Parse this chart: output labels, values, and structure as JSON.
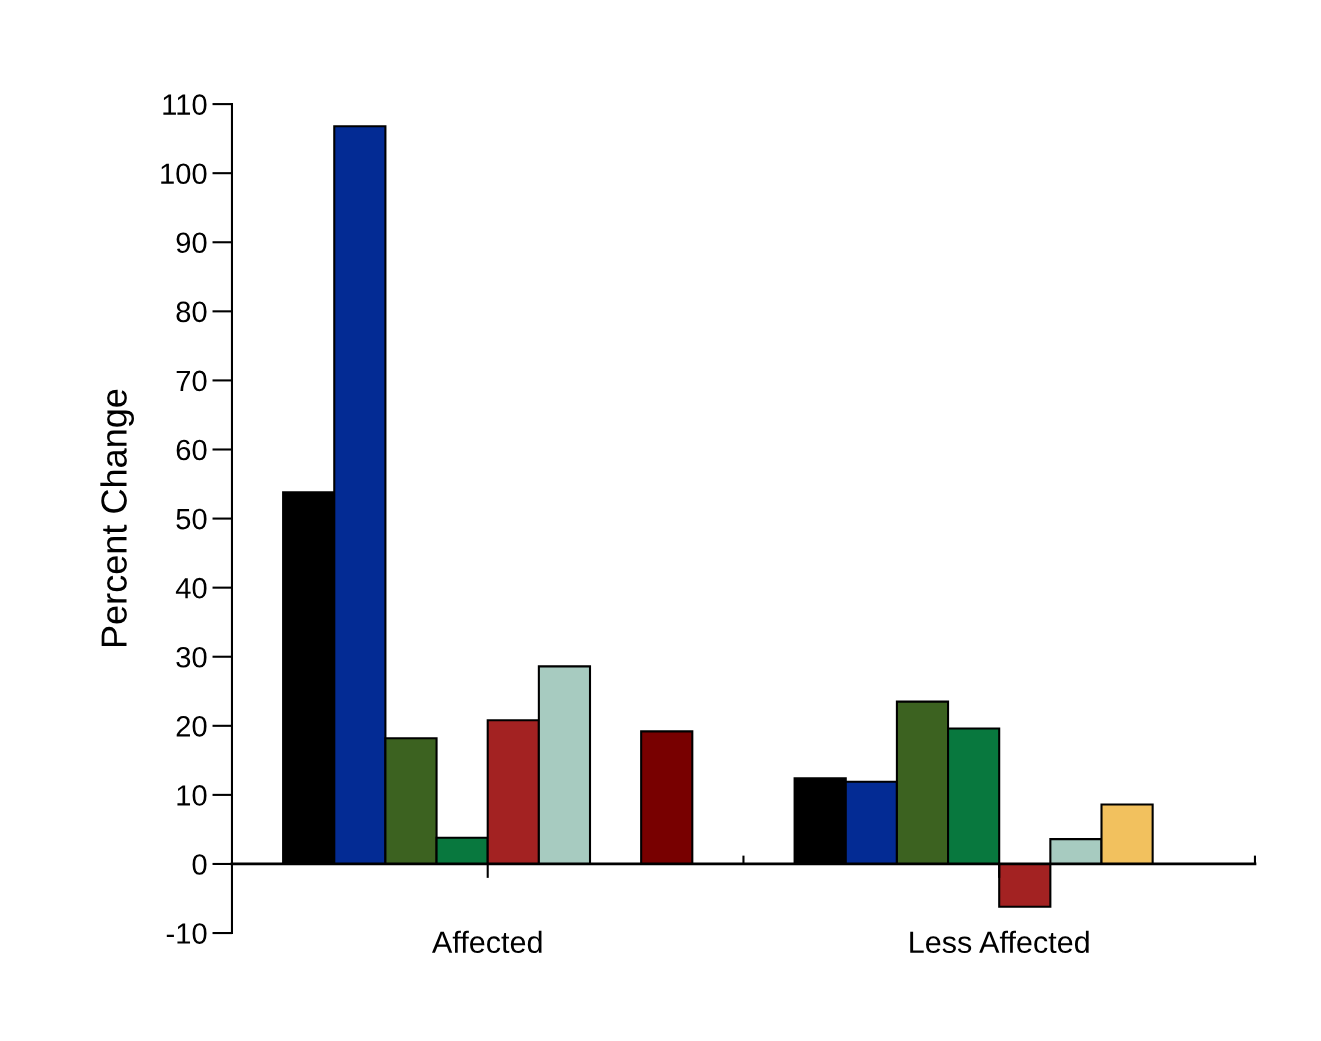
{
  "chart_data": {
    "type": "bar",
    "ylabel": "Percent Change",
    "categories": [
      "Affected",
      "Less Affected"
    ],
    "series": [
      {
        "color": "#000000",
        "values": [
          53.8,
          12.4
        ]
      },
      {
        "color": "#032b94",
        "values": [
          106.8,
          11.9
        ]
      },
      {
        "color": "#3c6220",
        "values": [
          18.2,
          23.5
        ]
      },
      {
        "color": "#08783e",
        "values": [
          3.8,
          19.6
        ]
      },
      {
        "color": "#a32222",
        "values": [
          20.8,
          -6.2
        ]
      },
      {
        "color": "#a7cbc0",
        "values": [
          28.6,
          3.6
        ]
      },
      {
        "color": "#f2c15e",
        "values": [
          null,
          8.6
        ]
      },
      {
        "color": "#780000",
        "values": [
          19.2,
          null
        ]
      }
    ],
    "ylim": [
      -10,
      110
    ],
    "yticks": [
      -10,
      0,
      10,
      20,
      30,
      40,
      50,
      60,
      70,
      80,
      90,
      100,
      110
    ],
    "grid": false,
    "legend": false
  }
}
